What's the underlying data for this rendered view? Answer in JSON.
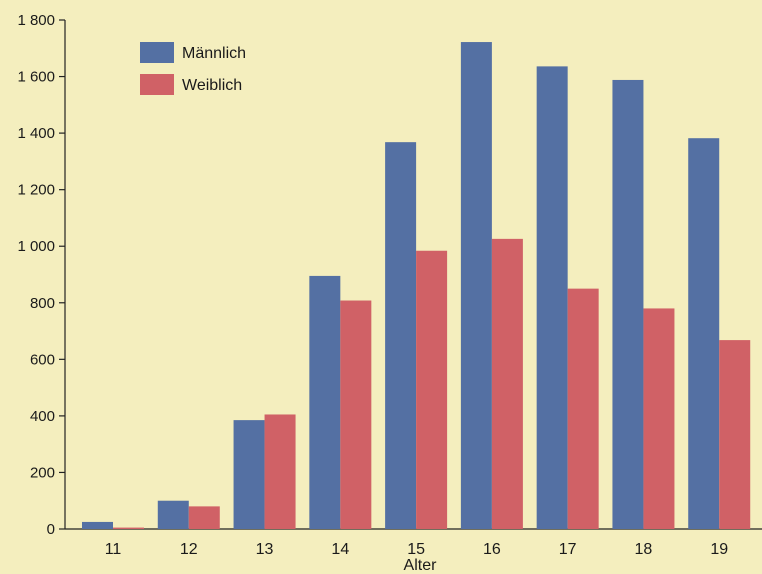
{
  "chart_data": {
    "type": "bar",
    "categories": [
      "11",
      "12",
      "13",
      "14",
      "15",
      "16",
      "17",
      "18",
      "19"
    ],
    "series": [
      {
        "name": "Männlich",
        "color": "#5470a3",
        "values": [
          25,
          100,
          385,
          895,
          1368,
          1722,
          1636,
          1588,
          1382
        ]
      },
      {
        "name": "Weiblich",
        "color": "#d06166",
        "values": [
          5,
          80,
          405,
          808,
          984,
          1026,
          850,
          780,
          668
        ]
      }
    ],
    "xlabel": "Alter",
    "ylabel": "",
    "ylim": [
      0,
      1800
    ],
    "yticks": [
      0,
      200,
      400,
      600,
      800,
      1000,
      1200,
      1400,
      1600,
      1800
    ],
    "ytick_labels": [
      "0",
      "200",
      "400",
      "600",
      "800",
      "1 000",
      "1 200",
      "1 400",
      "1 600",
      "1 800"
    ],
    "grid": false,
    "legend": "top-left",
    "background": "#f4eebe"
  }
}
